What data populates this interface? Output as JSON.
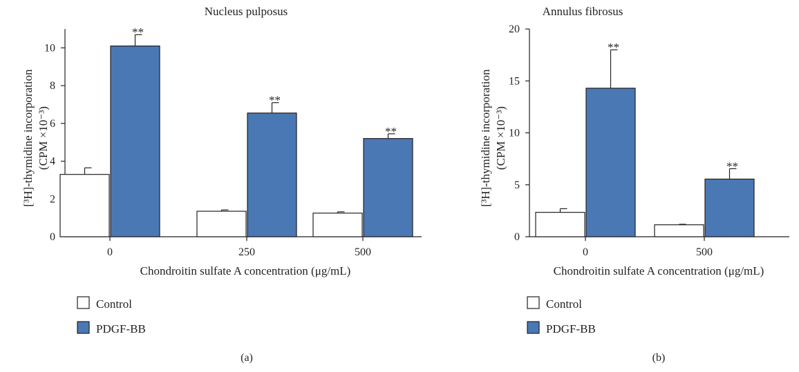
{
  "chart_data": [
    {
      "type": "bar",
      "title": "Nucleus pulposus",
      "xlabel": "Chondroitin sulfate A concentration (μg/mL)",
      "ylabel": "[³H]-thymidine incorporation (CPM ×10⁻³)",
      "categories": [
        "0",
        "250",
        "500"
      ],
      "ylim": [
        0,
        11
      ],
      "yticks": [
        0,
        2,
        4,
        6,
        8,
        10
      ],
      "series": [
        {
          "name": "Control",
          "color": "#ffffff",
          "values": [
            3.3,
            1.35,
            1.25
          ],
          "errors": [
            0.35,
            0.07,
            0.07
          ],
          "annotations": [
            "",
            "",
            ""
          ]
        },
        {
          "name": "PDGF-BB",
          "color": "#4a78b4",
          "values": [
            10.1,
            6.55,
            5.2
          ],
          "errors": [
            0.6,
            0.55,
            0.25
          ],
          "annotations": [
            "**",
            "**",
            "**"
          ]
        }
      ],
      "legend": "below",
      "panel_label": "(a)"
    },
    {
      "type": "bar",
      "title": "Annulus fibrosus",
      "xlabel": "Chondroitin sulfate A concentration (μg/mL)",
      "ylabel": "[³H]-thymidine incorporation (CPM ×10⁻³)",
      "categories": [
        "0",
        "500"
      ],
      "ylim": [
        0,
        20
      ],
      "yticks": [
        0,
        5,
        10,
        15,
        20
      ],
      "series": [
        {
          "name": "Control",
          "color": "#ffffff",
          "values": [
            2.35,
            1.15
          ],
          "errors": [
            0.35,
            0.05
          ],
          "annotations": [
            "",
            ""
          ]
        },
        {
          "name": "PDGF-BB",
          "color": "#4a78b4",
          "values": [
            14.3,
            5.55
          ],
          "errors": [
            3.7,
            1.0
          ],
          "annotations": [
            "**",
            "**"
          ]
        }
      ],
      "legend": "below",
      "panel_label": "(b)"
    }
  ]
}
